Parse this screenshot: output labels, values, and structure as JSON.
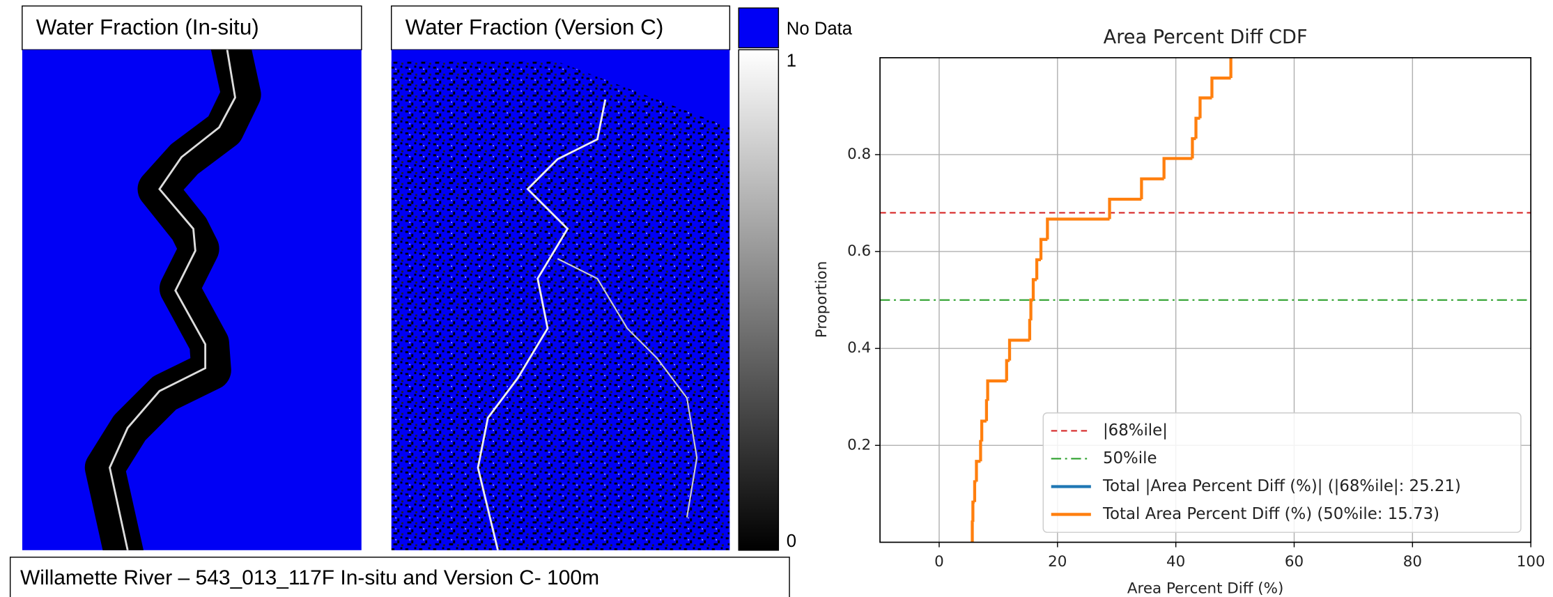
{
  "panels": [
    {
      "title": "Water Fraction (In-situ)"
    },
    {
      "title": "Water Fraction (Version C)"
    }
  ],
  "colorbar": {
    "no_data_label": "No Data",
    "ticks": [
      0,
      1
    ]
  },
  "caption": "Willamette River – 543_013_117F In-situ and Version C- 100m",
  "chart_data": {
    "type": "step",
    "title": "Area Percent Diff CDF",
    "x_label": "Area Percent Diff (%)",
    "y_label": "Proportion",
    "xlim": [
      -10,
      100
    ],
    "ylim": [
      0,
      1
    ],
    "xticks": [
      0,
      20,
      40,
      60,
      80,
      100
    ],
    "yticks": [
      0.2,
      0.4,
      0.6,
      0.8
    ],
    "grid": true,
    "legend": "lower right",
    "reference_lines": [
      {
        "name": "|68%ile|",
        "value": 0.68,
        "color": "#d62728",
        "style": "dashed"
      },
      {
        "name": "50%ile",
        "value": 0.5,
        "color": "#2ca02c",
        "style": "dashdot"
      }
    ],
    "series": [
      {
        "name": "Total |Area Percent Diff (%)| (|68%ile|: 25.21)",
        "color": "#1f77b4",
        "x": [],
        "values": []
      },
      {
        "name": "Total Area Percent Diff (%) (50%ile: 15.73)",
        "color": "#ff7f0e",
        "x": [
          5.6,
          5.7,
          6.0,
          6.3,
          7.0,
          7.2,
          8.0,
          8.2,
          11.4,
          11.9,
          15.3,
          15.5,
          15.9,
          16.5,
          17.2,
          18.3,
          28.8,
          34.2,
          38.0,
          42.8,
          43.4,
          44.1,
          46.1,
          49.3
        ],
        "values": [
          0.042,
          0.083,
          0.125,
          0.167,
          0.208,
          0.25,
          0.292,
          0.333,
          0.375,
          0.417,
          0.458,
          0.5,
          0.542,
          0.583,
          0.625,
          0.667,
          0.708,
          0.75,
          0.792,
          0.833,
          0.875,
          0.917,
          0.958,
          1.0
        ]
      }
    ]
  }
}
